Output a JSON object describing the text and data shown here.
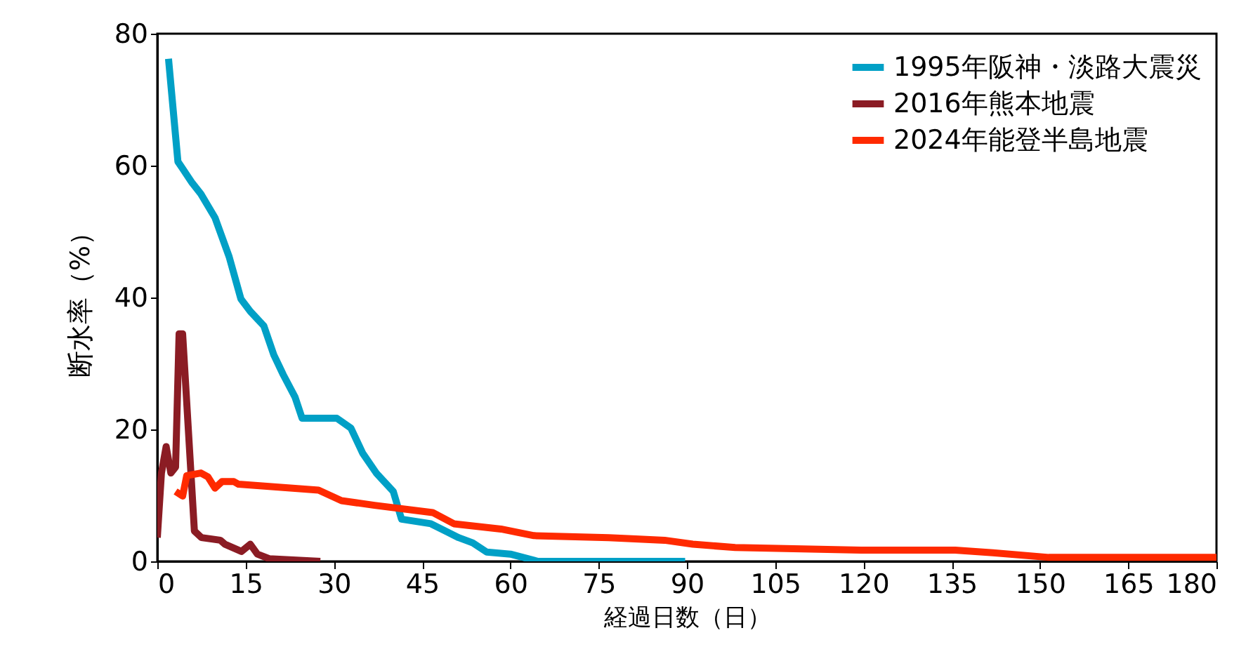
{
  "chart_data": {
    "type": "line",
    "xlabel": "経過日数（日）",
    "ylabel": "断水率（%）",
    "xlim": [
      0,
      180
    ],
    "xticks": [
      0,
      15,
      30,
      45,
      60,
      75,
      90,
      105,
      120,
      135,
      150,
      165,
      180
    ],
    "ylim": [
      0,
      80
    ],
    "yticks": [
      0,
      20,
      40,
      60,
      80
    ],
    "grid": false,
    "legend": "top right",
    "marker": "none",
    "line_style": "solid",
    "series": [
      {
        "name": "1995年阪神・淡路大震災",
        "color": "#00a0c6",
        "x": [
          1.9,
          3.5,
          5.9,
          7.4,
          9.8,
          12.2,
          14.2,
          15.8,
          18.1,
          19.8,
          21.4,
          23.4,
          24.6,
          30.5,
          32.9,
          34.9,
          37.2,
          40.1,
          41.5,
          46.5,
          51.2,
          53.6,
          56,
          60,
          64.7,
          89.7
        ],
        "values": [
          76.2,
          60.6,
          57.4,
          55.7,
          52.1,
          46.2,
          39.8,
          37.9,
          35.7,
          31.3,
          28.3,
          24.9,
          21.7,
          21.7,
          20.2,
          16.4,
          13.4,
          10.6,
          6.4,
          5.7,
          3.6,
          2.8,
          1.4,
          1.1,
          0,
          0
        ]
      },
      {
        "name": "2016年熊本地震",
        "color": "#8b1c24",
        "x": [
          0,
          0.7,
          1.5,
          2.3,
          3.1,
          3.7,
          4.3,
          6.3,
          7.5,
          10.7,
          11.5,
          14.3,
          15.8,
          17,
          19,
          27.7
        ],
        "values": [
          3.6,
          13.4,
          17.4,
          13.4,
          14.3,
          34.5,
          34.5,
          4.6,
          3.6,
          3.2,
          2.6,
          1.5,
          2.6,
          1.1,
          0.4,
          0
        ]
      },
      {
        "name": "2024年能登半島地震",
        "color": "#ff2a00",
        "x": [
          3.1,
          4.3,
          5,
          7.4,
          8.6,
          9.8,
          11,
          13,
          13.8,
          27.4,
          31.3,
          36.9,
          46.8,
          50.4,
          58.4,
          64,
          76.7,
          86.2,
          91,
          98.2,
          119.6,
          135.6,
          142,
          151.5,
          180
        ],
        "values": [
          10.6,
          9.9,
          13,
          13.4,
          12.8,
          11.1,
          12.1,
          12.1,
          11.7,
          10.8,
          9.2,
          8.5,
          7.4,
          5.7,
          4.9,
          3.9,
          3.6,
          3.2,
          2.6,
          2.1,
          1.7,
          1.7,
          1.3,
          0.6,
          0.6
        ]
      }
    ]
  }
}
